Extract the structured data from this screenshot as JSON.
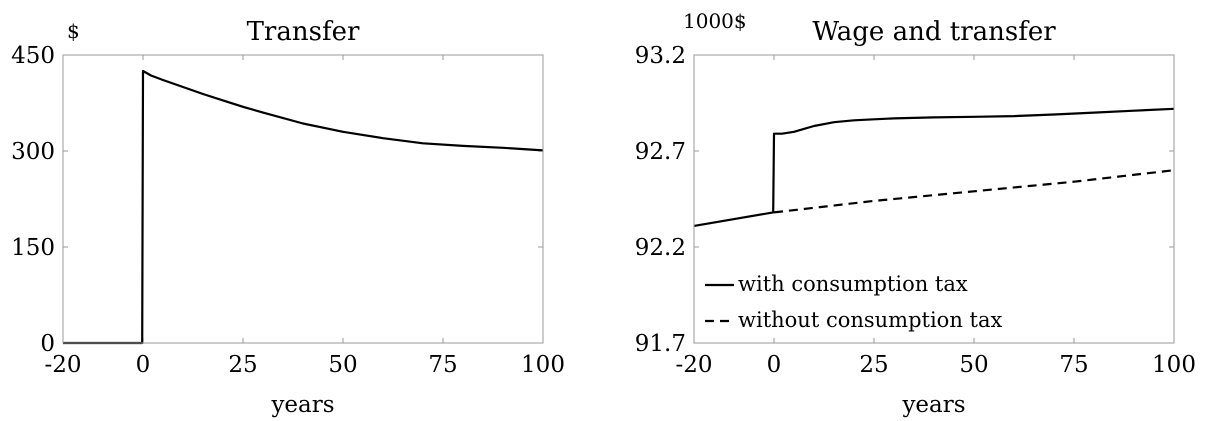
{
  "chart_data": [
    {
      "type": "line",
      "title": "Transfer",
      "unit_label": "$",
      "xlabel": "years",
      "xlim": [
        -20,
        100
      ],
      "ylim": [
        0,
        450
      ],
      "xticks": [
        -20,
        0,
        25,
        50,
        75,
        100
      ],
      "xtick_labels": [
        "-20",
        "0",
        "25",
        "50",
        "75",
        "100"
      ],
      "yticks": [
        0,
        150,
        300,
        450
      ],
      "ytick_labels": [
        "0",
        "150",
        "300",
        "450"
      ],
      "series": [
        {
          "style": "solid",
          "color": "#000000",
          "x": [
            -20,
            -0.2,
            0,
            2,
            5,
            10,
            15,
            20,
            25,
            30,
            40,
            50,
            60,
            70,
            80,
            90,
            100
          ],
          "y": [
            0,
            0,
            425,
            418,
            411,
            400,
            389,
            379,
            369,
            360,
            343,
            330,
            320,
            312,
            308,
            305,
            301
          ]
        }
      ]
    },
    {
      "type": "line",
      "title": "Wage and transfer",
      "unit_label": "1000$",
      "xlabel": "years",
      "xlim": [
        -20,
        100
      ],
      "ylim": [
        91.7,
        93.2
      ],
      "xticks": [
        -20,
        0,
        25,
        50,
        75,
        100
      ],
      "xtick_labels": [
        "-20",
        "0",
        "25",
        "50",
        "75",
        "100"
      ],
      "yticks": [
        91.7,
        92.2,
        92.7,
        93.2
      ],
      "ytick_labels": [
        "91.7",
        "92.2",
        "92.7",
        "93.2"
      ],
      "legend_position": "bottom-left",
      "series": [
        {
          "name": "with consumption tax",
          "style": "solid",
          "color": "#000000",
          "x": [
            -20,
            -0.2,
            0,
            2,
            5,
            10,
            15,
            20,
            25,
            30,
            40,
            50,
            60,
            70,
            80,
            90,
            100
          ],
          "y": [
            92.31,
            92.38,
            92.79,
            92.79,
            92.8,
            92.83,
            92.85,
            92.86,
            92.865,
            92.87,
            92.875,
            92.878,
            92.882,
            92.89,
            92.9,
            92.91,
            92.92
          ]
        },
        {
          "name": "without consumption tax",
          "style": "dashed",
          "color": "#000000",
          "x": [
            0,
            25,
            50,
            75,
            100
          ],
          "y": [
            92.38,
            92.44,
            92.49,
            92.54,
            92.6
          ]
        }
      ]
    }
  ]
}
